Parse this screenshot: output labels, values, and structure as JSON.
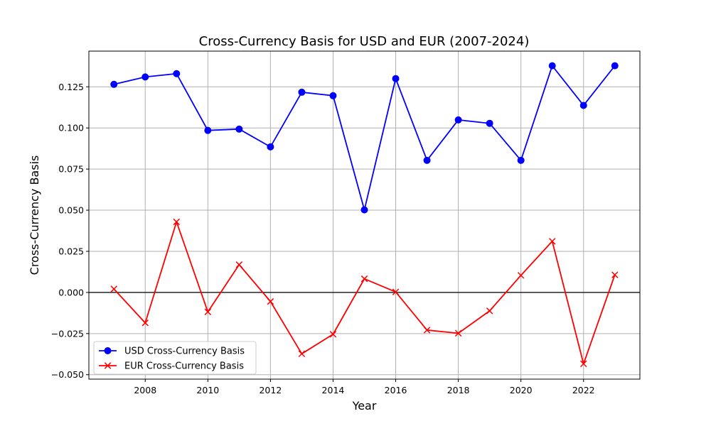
{
  "chart_data": {
    "type": "line",
    "title": "Cross-Currency Basis for USD and EUR (2007-2024)",
    "xlabel": "Year",
    "ylabel": "Cross-Currency Basis",
    "x": [
      2007,
      2008,
      2009,
      2010,
      2011,
      2012,
      2013,
      2014,
      2015,
      2016,
      2017,
      2018,
      2019,
      2020,
      2021,
      2022,
      2023
    ],
    "xlim": [
      2006.2,
      2023.8
    ],
    "ylim": [
      -0.0527,
      0.1467
    ],
    "xticks": [
      2008,
      2010,
      2012,
      2014,
      2016,
      2018,
      2020,
      2022
    ],
    "yticks": [
      -0.05,
      -0.025,
      0.0,
      0.025,
      0.05,
      0.075,
      0.1,
      0.125
    ],
    "ytick_labels": [
      "−0.050",
      "−0.025",
      "0.000",
      "0.025",
      "0.050",
      "0.075",
      "0.100",
      "0.125"
    ],
    "grid": true,
    "zero_line": true,
    "legend_position": "lower-left",
    "series": [
      {
        "name": "USD Cross-Currency Basis",
        "color": "#0000ff",
        "marker": "circle",
        "values": [
          0.1265,
          0.131,
          0.133,
          0.0985,
          0.0993,
          0.0885,
          0.1217,
          0.1196,
          0.0502,
          0.13,
          0.0803,
          0.1049,
          0.1028,
          0.0803,
          0.1378,
          0.1137,
          0.1378
        ]
      },
      {
        "name": "EUR Cross-Currency Basis",
        "color": "#ff0000",
        "marker": "x",
        "values": [
          0.0021,
          -0.0185,
          0.0429,
          -0.0118,
          0.0169,
          -0.0055,
          -0.0373,
          -0.0254,
          0.0083,
          0.0003,
          -0.0229,
          -0.0248,
          -0.0112,
          0.0104,
          0.0311,
          -0.0434,
          0.0107
        ]
      }
    ]
  }
}
